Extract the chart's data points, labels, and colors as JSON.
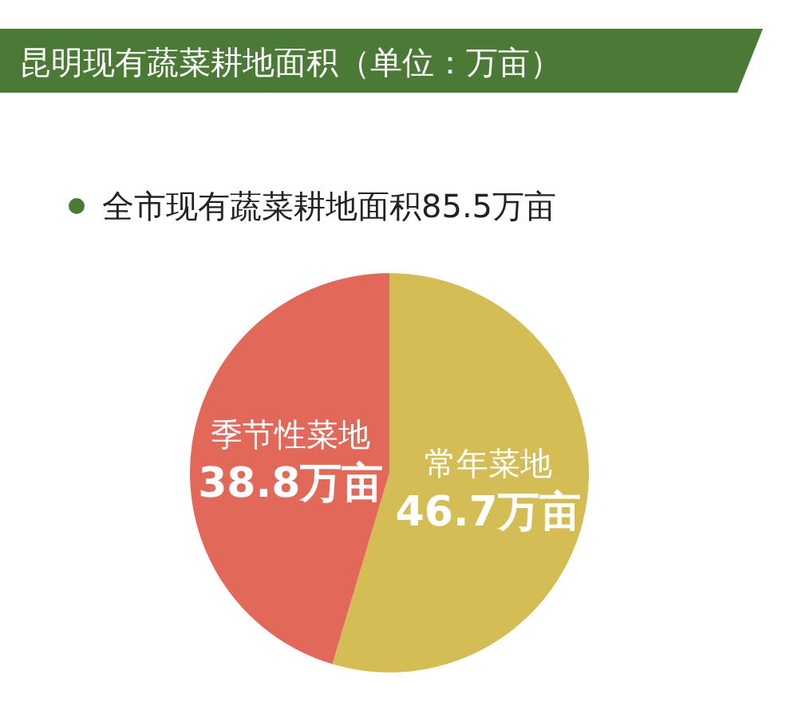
{
  "chart_data": {
    "type": "pie",
    "title": "昆明现有蔬菜耕地面积（单位：万亩）",
    "annotations": [
      "全市现有蔬菜耕地面积85.5万亩"
    ],
    "categories": [
      "常年菜地",
      "季节性菜地"
    ],
    "values": [
      46.7,
      38.8
    ],
    "value_labels": [
      "46.7万亩",
      "38.8万亩"
    ],
    "colors": [
      "#d4bd55",
      "#e2695a"
    ]
  }
}
